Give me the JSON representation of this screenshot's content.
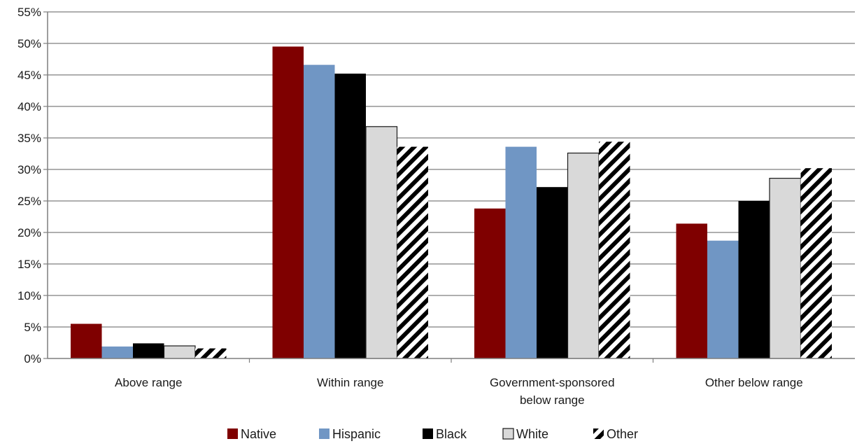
{
  "chart_data": {
    "type": "bar",
    "title": "",
    "xlabel": "",
    "ylabel": "",
    "ylim": [
      0,
      55
    ],
    "y_ticks": [
      "0%",
      "5%",
      "10%",
      "15%",
      "20%",
      "25%",
      "30%",
      "35%",
      "40%",
      "45%",
      "50%",
      "55%"
    ],
    "grid": true,
    "legend_position": "bottom",
    "categories": [
      [
        "Above range"
      ],
      [
        "Within range"
      ],
      [
        "Government-sponsored",
        "below range"
      ],
      [
        "Other below range"
      ]
    ],
    "series": [
      {
        "name": "Native",
        "color": "#7f0000",
        "pattern": "solid",
        "values": [
          5.5,
          49.5,
          23.8,
          21.4
        ]
      },
      {
        "name": "Hispanic",
        "color": "#7096c4",
        "pattern": "solid",
        "values": [
          1.9,
          46.6,
          33.6,
          18.7
        ]
      },
      {
        "name": "Black",
        "color": "#000000",
        "pattern": "solid",
        "values": [
          2.4,
          45.2,
          27.2,
          25.0
        ]
      },
      {
        "name": "White",
        "color": "#d9d9d9",
        "pattern": "solid",
        "values": [
          2.0,
          36.8,
          32.6,
          28.6
        ]
      },
      {
        "name": "Other",
        "color": "#000000",
        "pattern": "hatched",
        "values": [
          1.6,
          33.6,
          34.4,
          30.2
        ]
      }
    ]
  }
}
